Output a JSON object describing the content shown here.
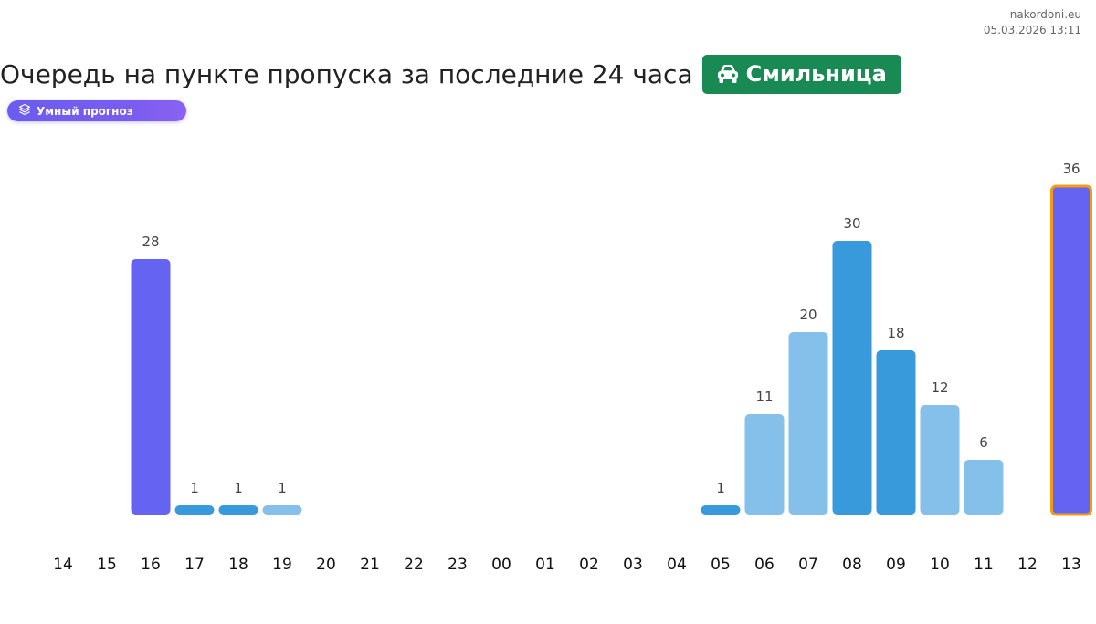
{
  "site": {
    "domain": "nakordoni.eu",
    "datetime": "05.03.2026 13:11"
  },
  "title": "Очередь на пункте пропуска за последние 24 часа",
  "checkpoint": {
    "name": "Смильница",
    "icon": "car-icon",
    "color": "#1a8a55"
  },
  "badge": {
    "icon": "layers-icon",
    "label": "Умный прогноз"
  },
  "colors": {
    "purple": "#6563f1",
    "blue": "#3899db",
    "light_blue": "#85c0ea",
    "current_outline": "#f39c12"
  },
  "chart_data": {
    "type": "bar",
    "categories": [
      "14",
      "15",
      "16",
      "17",
      "18",
      "19",
      "20",
      "21",
      "22",
      "23",
      "00",
      "01",
      "02",
      "03",
      "04",
      "05",
      "06",
      "07",
      "08",
      "09",
      "10",
      "11",
      "12",
      "13"
    ],
    "values": [
      null,
      null,
      28,
      1,
      1,
      1,
      null,
      null,
      null,
      null,
      null,
      null,
      null,
      null,
      null,
      1,
      11,
      20,
      30,
      18,
      12,
      6,
      null,
      36
    ],
    "bar_colors": [
      null,
      null,
      "purple",
      "blue",
      "blue",
      "light_blue",
      null,
      null,
      null,
      null,
      null,
      null,
      null,
      null,
      null,
      "blue",
      "light_blue",
      "light_blue",
      "blue",
      "blue",
      "light_blue",
      "light_blue",
      null,
      "purple"
    ],
    "highlighted_category": "13",
    "ylim": [
      0,
      36
    ],
    "grid": false,
    "legend": "none",
    "xlabel": "",
    "ylabel": ""
  }
}
